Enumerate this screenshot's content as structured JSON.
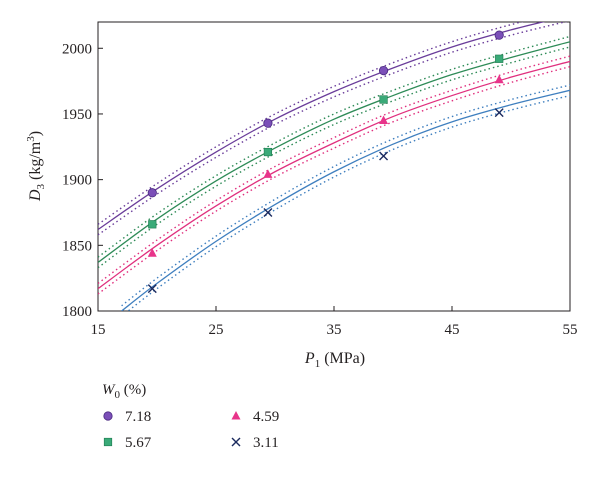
{
  "chart_data": {
    "type": "scatter",
    "xlabel": {
      "main": "P",
      "sub": "1",
      "unit": " (MPa)"
    },
    "ylabel": {
      "main": "D",
      "sub": "3",
      "unit_pre": " (kg/m",
      "unit_sup": "3",
      "unit_post": ")"
    },
    "xlim": [
      15,
      55
    ],
    "ylim": [
      1800,
      2020
    ],
    "x_ticks": [
      15,
      25,
      35,
      45,
      55
    ],
    "y_ticks": [
      1800,
      1850,
      1900,
      1950,
      2000
    ],
    "grid": false,
    "legend": {
      "title_main": "W",
      "title_sub": "0",
      "title_unit": " (%)",
      "placement": "bottom-left"
    },
    "series": [
      {
        "name": "7.18",
        "marker": "circle",
        "color": "#7b4fb8",
        "line_color": "#6a3d9a",
        "x": [
          19.6,
          29.4,
          39.2,
          49.0
        ],
        "y": [
          1890,
          1943,
          1983,
          2010
        ],
        "fit_x": [
          15,
          20,
          25,
          30,
          35,
          40,
          45,
          50,
          55
        ],
        "fit_y": [
          1862,
          1893,
          1921,
          1946,
          1967,
          1985,
          2001,
          2014,
          2025
        ]
      },
      {
        "name": "5.67",
        "marker": "square",
        "color": "#3aaa78",
        "line_color": "#2e8b57",
        "x": [
          19.6,
          29.4,
          39.2,
          49.0
        ],
        "y": [
          1866,
          1921,
          1961,
          1992
        ],
        "fit_x": [
          15,
          20,
          25,
          30,
          35,
          40,
          45,
          50,
          55
        ],
        "fit_y": [
          1837,
          1870,
          1899,
          1924,
          1946,
          1964,
          1980,
          1993,
          2005
        ]
      },
      {
        "name": "4.59",
        "marker": "triangle",
        "color": "#e8348a",
        "line_color": "#e0307e",
        "x": [
          19.6,
          29.4,
          39.2,
          49.0
        ],
        "y": [
          1844,
          1904,
          1945,
          1976
        ],
        "fit_x": [
          15,
          20,
          25,
          30,
          35,
          40,
          45,
          50,
          55
        ],
        "fit_y": [
          1817,
          1850,
          1880,
          1906,
          1928,
          1948,
          1964,
          1978,
          1990
        ]
      },
      {
        "name": "3.11",
        "marker": "x",
        "color": "#1b2a5e",
        "line_color": "#3f7fbf",
        "x": [
          19.6,
          29.4,
          39.2,
          49.0
        ],
        "y": [
          1817,
          1875,
          1918,
          1951
        ],
        "fit_x": [
          17,
          20,
          25,
          30,
          35,
          40,
          45,
          50,
          55
        ],
        "fit_y": [
          1800,
          1821,
          1853,
          1881,
          1906,
          1927,
          1944,
          1957,
          1968
        ]
      }
    ],
    "confidence_band_offset": 4
  }
}
